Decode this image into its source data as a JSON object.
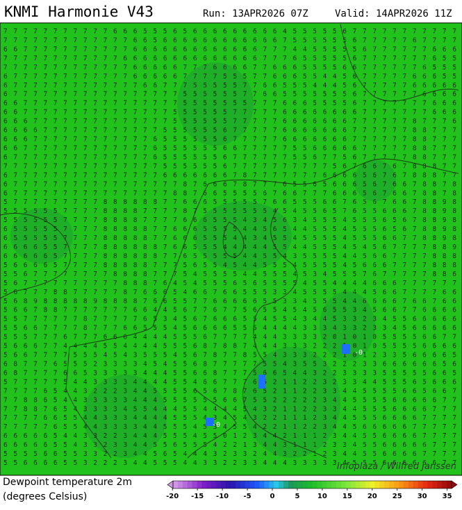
{
  "header": {
    "title": "KNMI Harmonie V43",
    "run": "Run: 13APR2026 07Z",
    "valid": "Valid: 14APR2026 11Z"
  },
  "grid": {
    "rows": [
      "7 7 7 7 7 7 7 7 7 7 7 6 6 6 5 5 5 6 5 6 6 6 6 6 6 6 6 6 4 5 5 5 5 5 6 7 7 7 7 7 7 7 7 7 7 7",
      "7 7 7 7 7 7 7 7 7 7 7 7 7 6 6 5 6 6 6 6 6 6 6 6 6 6 6 6 7 5 5 5 5 5 5 6 7 7 7 7 7 6 7 7 7 7",
      "6 6 7 7 7 7 7 7 7 7 7 7 7 6 6 6 6 6 6 6 6 6 6 6 6 6 7 7 7 4 4 5 5 5 5 5 6 7 7 7 7 7 7 6 6 6",
      "7 7 7 7 7 7 7 7 7 7 7 7 6 6 6 6 6 6 6 6 6 6 6 6 6 6 7 7 7 6 5 5 5 5 5 6 7 7 7 7 7 7 7 6 5 5",
      "7 7 7 7 7 7 7 7 7 7 7 7 7 6 6 6 6 6 7 7 7 6 6 6 6 7 7 6 6 6 5 5 5 5 6 6 7 7 7 7 7 7 6 5 5 5",
      "6 7 7 7 7 7 7 7 7 7 7 7 7 6 6 6 6 6 7 7 7 7 5 5 5 7 7 6 6 6 5 5 4 4 5 6 7 7 7 7 7 6 6 6 5 5",
      "6 7 7 7 7 7 7 7 7 7 7 7 7 7 6 6 7 7 7 5 5 5 5 5 7 7 6 6 5 5 5 4 4 4 5 6 7 7 7 7 7 6 6 6 6 6",
      "6 7 7 7 7 7 7 7 7 7 7 7 7 7 7 7 7 7 5 5 5 5 5 5 7 7 6 6 5 5 5 5 5 5 5 6 7 7 7 7 7 7 6 6 6 6",
      "6 6 7 7 7 7 7 7 7 7 7 7 7 7 7 7 7 7 5 5 5 5 5 5 5 7 7 7 6 6 6 5 5 5 5 6 7 7 7 7 7 7 7 6 6 6",
      "6 6 7 7 7 7 7 7 7 7 7 7 7 7 7 7 7 5 5 5 5 5 5 7 7 7 7 7 6 6 6 6 6 6 6 6 7 7 7 7 7 7 7 6 6 6",
      "6 6 6 7 7 7 7 7 7 7 7 7 7 7 7 7 7 5 5 5 5 5 5 7 7 7 7 7 6 6 6 6 6 6 6 7 7 7 7 7 7 8 7 7 7 6",
      "6 6 6 6 7 7 7 7 7 7 7 7 7 7 7 7 5 5 5 5 5 5 6 7 7 7 7 7 6 6 6 6 6 6 6 7 7 7 7 7 7 8 8 7 7 7",
      "6 6 6 7 7 7 7 7 7 7 7 7 7 7 7 6 5 5 5 5 5 5 6 7 7 7 7 7 6 6 6 6 6 6 6 7 7 7 7 7 7 8 8 7 7 7",
      "6 6 7 7 7 7 7 7 7 7 7 7 7 7 7 6 5 5 5 5 5 5 6 6 7 7 7 7 7 5 5 6 6 6 6 6 7 7 7 7 7 8 8 7 7 7",
      "6 7 7 7 7 7 7 7 7 7 7 7 7 7 7 6 5 5 5 5 5 5 6 7 7 7 7 7 7 5 5 6 7 7 5 6 7 7 7 7 7 8 8 7 7 7",
      "7 7 7 7 7 7 7 7 7 7 7 7 7 7 7 7 5 5 5 5 5 5 6 7 7 7 7 7 7 7 7 7 7 5 6 7 6 6 7 6 7 8 8 8 7 7",
      "6 7 7 7 7 7 7 7 7 7 7 7 7 7 7 7 6 6 6 6 6 6 6 7 8 7 7 7 7 7 7 7 6 6 6 6 5 6 7 6 7 8 8 8 7 7",
      "6 7 7 7 7 7 7 7 7 7 7 7 7 7 7 7 7 7 8 7 6 6 6 7 8 7 7 7 6 5 5 6 5 6 6 6 5 6 7 6 6 7 8 8 7 8",
      "6 7 7 7 7 7 7 7 7 7 7 7 7 7 7 7 7 8 8 7 6 6 5 5 5 5 6 7 6 6 7 7 7 6 6 6 5 6 7 6 6 7 8 8 7 8",
      "5 7 7 7 7 7 7 7 7 7 8 8 8 8 8 8 7 7 6 6 6 5 5 5 5 5 7 6 6 5 5 5 6 6 7 6 5 6 7 6 6 7 8 8 9 8",
      "5 5 5 5 5 5 7 7 7 7 8 8 8 8 7 7 7 7 8 7 5 5 5 5 5 5 5 4 5 4 5 5 6 5 7 6 5 5 6 6 6 7 8 8 9 8",
      "5 5 5 5 5 5 7 7 7 7 8 8 8 8 7 7 7 7 6 6 6 5 5 5 4 3 4 5 6 3 4 5 5 5 4 5 5 5 6 5 6 7 8 8 9 8",
      "6 5 5 5 5 5 7 7 7 7 8 8 8 8 8 7 7 6 6 6 5 5 5 5 4 4 5 6 5 4 4 5 5 5 4 5 5 5 6 5 6 7 8 8 9 8",
      "6 5 5 5 5 5 7 7 7 7 8 8 8 8 8 7 7 6 6 6 5 5 5 4 4 3 4 5 5 4 5 5 5 5 4 5 5 5 6 6 7 7 8 8 9 8",
      "6 6 6 6 5 5 7 7 7 7 8 8 8 8 8 8 7 6 6 5 5 5 4 4 4 4 4 5 5 4 4 5 5 5 4 5 4 5 6 7 7 7 7 8 8 9",
      "6 6 6 6 6 5 7 7 7 7 8 8 8 8 8 8 7 7 6 5 5 5 5 5 4 4 5 5 4 3 5 5 5 5 4 4 5 6 6 7 7 7 7 8 8 8",
      "5 6 6 6 6 5 7 7 7 7 8 8 8 8 8 7 7 7 5 6 5 5 4 5 4 4 5 5 5 4 5 5 5 5 4 5 6 6 6 7 7 7 7 8 8 8",
      "5 5 6 7 7 7 7 7 7 7 7 8 8 8 8 7 7 7 5 4 5 5 5 5 4 4 5 5 5 4 5 3 4 5 5 5 7 6 7 7 7 7 7 8 8 6",
      "5 6 7 7 7 7 7 7 7 7 7 7 8 8 8 7 6 4 5 4 5 5 5 6 5 6 5 5 5 5 4 5 5 4 4 4 4 6 6 6 7 7 7 7 7 7",
      "5 6 7 7 7 8 8 7 7 7 7 7 8 7 6 6 6 5 4 6 6 7 6 6 5 5 5 3 3 4 5 5 5 5 4 4 4 5 6 6 7 7 7 7 6 6",
      "5 6 8 9 8 8 8 8 8 9 8 8 8 8 7 6 6 5 5 7 7 6 6 6 6 6 5 5 3 3 4 5 5 5 4 4 6 6 6 6 7 6 6 7 6 6",
      "5 6 6 7 8 8 7 7 7 7 7 7 7 6 6 4 4 5 6 7 7 6 7 7 5 6 5 5 4 5 4 5 6 5 5 3 4 5 6 6 7 7 6 6 6 6",
      "5 5 7 7 7 7 7 7 8 7 7 7 7 7 6 5 3 4 5 6 7 6 6 6 5 5 4 5 5 4 3 4 4 5 3 3 2 3 4 5 5 6 6 6 6 6",
      "5 5 6 6 7 7 7 7 8 7 7 7 6 6 5 5 5 4 5 6 6 6 6 5 5 5 4 4 4 4 3 3 3 4 3 3 2 3 3 4 5 6 6 6 6 6",
      "5 5 5 7 7 7 6 7 7 7 6 6 6 4 4 4 4 5 5 5 6 7 7 7 7 4 4 4 3 3 3 3 2 0 1 0 1 0 5 5 5 5 6 6 7 7",
      "5 6 6 6 7 7 4 4 4 4 5 5 4 4 4 4 5 5 5 6 8 7 8 8 7 4 4 4 3 3 3 2 2 2 1 0 1 0 5 5 5 5 6 6 6 6",
      "5 6 6 7 7 7 7 5 5 5 4 5 4 3 5 5 5 4 5 6 7 8 7 7 8 5 5 4 3 3 3 2 2 2 1 0 1 2 3 3 5 6 6 6 6 5",
      "6 8 7 7 7 6 5 5 5 2 3 3 3 3 4 5 4 5 5 6 8 7 7 7 7 7 5 5 4 3 5 5 3 2 2 2 3 3 6 6 6 6 6 6 5 6",
      "6 8 7 7 7 7 6 6 5 3 3 3 3 3 4 4 4 5 5 6 6 8 7 7 7 5 6 6 5 4 4 3 2 2 3 3 3 3 5 5 5 5 5 6 6 5",
      "5 7 7 7 7 7 5 4 4 3 3 3 3 4 4 4 4 5 5 4 6 6 7 7 7 6 5 2 1 1 2 2 3 2 3 3 4 4 5 5 5 6 5 6 6 6",
      "7 7 7 7 6 5 4 4 3 2 2 2 3 4 4 5 5 5 5 6 5 6 7 8 7 6 5 2 1 1 2 2 3 3 4 4 5 5 5 5 6 6 5 6 6 7",
      "7 7 8 8 6 5 4 4 3 3 3 3 3 4 4 4 5 5 5 5 5 5 6 6 7 5 5 2 2 2 2 2 3 4 4 5 5 5 5 6 6 6 6 6 7 7",
      "7 7 8 8 7 6 5 4 3 3 3 3 4 5 5 4 4 4 5 5 4 4 4 4 5 4 3 2 1 1 2 2 3 3 4 4 5 5 5 6 6 6 6 7 7 7",
      "7 7 7 7 6 6 5 5 4 4 3 3 3 4 4 4 4 5 5 5 4 3 4 5 4 3 2 2 1 1 1 2 3 4 4 5 5 5 6 6 6 6 7 7 7 7",
      "7 7 7 7 7 6 5 5 4 4 3 3 3 3 4 4 5 5 5 4 5 3 4 5 5 4 2 2 1 1 2 2 3 4 4 5 6 6 6 6 6 7 7 7 7 7",
      "6 6 6 6 6 5 4 4 3 3 2 2 3 4 4 4 5 5 5 4 5 5 0 1 2 3 4 4 2 1 1 1 2 3 4 4 5 5 6 6 6 6 7 7 7 7",
      "6 6 6 6 6 5 5 4 3 3 2 3 3 4 4 5 5 6 5 5 5 4 2 2 1 3 4 4 3 1 1 1 2 3 3 4 5 5 6 6 6 6 6 7 7 7",
      "5 5 5 5 6 6 5 5 3 3 2 2 3 4 4 5 6 5 4 4 4 3 2 3 3 2 4 4 3 2 2 1 2 3 4 4 5 5 6 6 6 6 7 7 7 7",
      "5 5 6 6 6 6 5 5 3 2 2 2 3 4 4 5 5 5 4 4 3 3 2 2 3 3 4 4 4 3 3 3 3 3 4 5 5 5 6 6 6 6 6 6 7 7"
    ]
  },
  "annotations": [
    "-0",
    "-0"
  ],
  "credit": "Infoplaza / Wilfred Janssen",
  "legend": {
    "label": "Dewpoint temperature 2m",
    "units": "(degrees Celsius)",
    "lim": [
      -21,
      37
    ],
    "ticks": [
      -20,
      -15,
      -10,
      -5,
      0,
      5,
      10,
      15,
      20,
      25,
      30,
      35
    ]
  }
}
